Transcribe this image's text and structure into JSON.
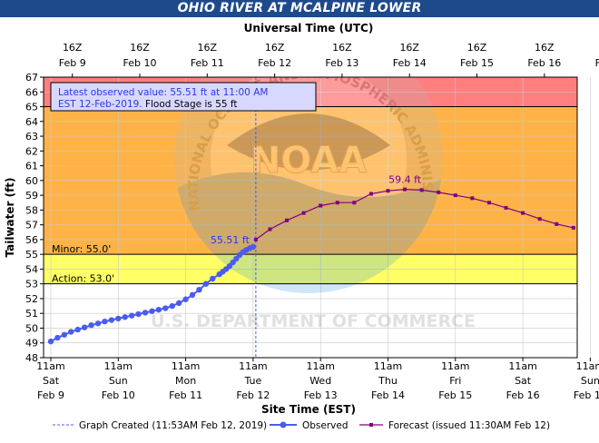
{
  "chart_data": {
    "type": "line",
    "title": "OHIO RIVER AT MCALPINE LOWER",
    "top_axis_title": "Universal Time (UTC)",
    "bottom_axis_title": "Site Time (EST)",
    "ylabel": "Tailwater (ft)",
    "ylim": [
      48,
      67
    ],
    "yticks": [
      "48",
      "49",
      "50",
      "51",
      "52",
      "53",
      "54",
      "55",
      "56",
      "57",
      "58",
      "59",
      "60",
      "61",
      "62",
      "63",
      "64",
      "65",
      "66",
      "67"
    ],
    "top_ticks": [
      {
        "l1": "16Z",
        "l2": "Feb 9"
      },
      {
        "l1": "16Z",
        "l2": "Feb 10"
      },
      {
        "l1": "16Z",
        "l2": "Feb 11"
      },
      {
        "l1": "16Z",
        "l2": "Feb 12"
      },
      {
        "l1": "16Z",
        "l2": "Feb 13"
      },
      {
        "l1": "16Z",
        "l2": "Feb 14"
      },
      {
        "l1": "16Z",
        "l2": "Feb 15"
      },
      {
        "l1": "16Z",
        "l2": "Feb 16"
      },
      {
        "l1": "16Z",
        "l2": "Feb 17"
      }
    ],
    "bottom_ticks": [
      {
        "l1": "11am",
        "l2": "Sat",
        "l3": "Feb 9"
      },
      {
        "l1": "11am",
        "l2": "Sun",
        "l3": "Feb 10"
      },
      {
        "l1": "11am",
        "l2": "Mon",
        "l3": "Feb 11"
      },
      {
        "l1": "11am",
        "l2": "Tue",
        "l3": "Feb 12"
      },
      {
        "l1": "11am",
        "l2": "Wed",
        "l3": "Feb 13"
      },
      {
        "l1": "11am",
        "l2": "Thu",
        "l3": "Feb 14"
      },
      {
        "l1": "11am",
        "l2": "Fri",
        "l3": "Feb 15"
      },
      {
        "l1": "11am",
        "l2": "Sat",
        "l3": "Feb 16"
      },
      {
        "l1": "11am",
        "l2": "Sun",
        "l3": "Feb 17"
      }
    ],
    "xlim": [
      "Feb 9 11am EST",
      "Feb 17 11am EST"
    ],
    "bands": [
      {
        "from": 48,
        "to": 53,
        "color": "#ffffff"
      },
      {
        "from": 53,
        "to": 55,
        "color": "#ffff66"
      },
      {
        "from": 55,
        "to": 65,
        "color": "#ffb347"
      },
      {
        "from": 65,
        "to": 67,
        "color": "#ff7f7f"
      }
    ],
    "stage_labels": [
      {
        "label": "Minor:  55.0'",
        "value": 55
      },
      {
        "label": "Action:  53.0'",
        "value": 53
      }
    ],
    "flood_line": 65,
    "graph_created_day": 3.04,
    "series": [
      {
        "name": "Observed",
        "color": "#4a5cf0",
        "x_days": [
          0,
          0.1,
          0.2,
          0.3,
          0.4,
          0.5,
          0.6,
          0.7,
          0.8,
          0.9,
          1.0,
          1.1,
          1.2,
          1.3,
          1.4,
          1.5,
          1.6,
          1.7,
          1.8,
          1.9,
          2.0,
          2.1,
          2.2,
          2.3,
          2.4,
          2.5,
          2.55,
          2.6,
          2.65,
          2.7,
          2.75,
          2.8,
          2.85,
          2.9,
          2.95,
          3.0
        ],
        "values": [
          49.1,
          49.35,
          49.55,
          49.75,
          49.9,
          50.05,
          50.2,
          50.32,
          50.45,
          50.55,
          50.65,
          50.75,
          50.85,
          50.95,
          51.05,
          51.15,
          51.25,
          51.35,
          51.5,
          51.7,
          51.95,
          52.25,
          52.6,
          53.0,
          53.35,
          53.65,
          53.82,
          54.0,
          54.2,
          54.45,
          54.7,
          54.95,
          55.15,
          55.3,
          55.42,
          55.51
        ]
      },
      {
        "name": "Forecast (issued 11:30AM Feb 12)",
        "color": "#800080",
        "x_days": [
          3.04,
          3.25,
          3.5,
          3.75,
          4.0,
          4.25,
          4.5,
          4.75,
          5.0,
          5.25,
          5.5,
          5.75,
          6.0,
          6.25,
          6.5,
          6.75,
          7.0,
          7.25,
          7.5,
          7.75
        ],
        "values": [
          56.0,
          56.7,
          57.3,
          57.8,
          58.3,
          58.5,
          58.5,
          59.1,
          59.3,
          59.4,
          59.35,
          59.2,
          59.0,
          58.8,
          58.5,
          58.15,
          57.8,
          57.4,
          57.05,
          56.8
        ]
      }
    ],
    "peak": {
      "label": "59.4 ft",
      "x_day": 5.25,
      "value": 59.4
    },
    "obs_label": {
      "label": "55.51 ft",
      "x_day": 3.0,
      "value": 55.51
    },
    "info_box": {
      "line1": "Latest observed value: 55.51 ft at 11:00 AM",
      "line2_a": "EST 12-Feb-2019.",
      "line2_b": " Flood Stage is 55 ft"
    },
    "legend": [
      {
        "label": "Graph Created (11:53AM Feb 12, 2019)",
        "style": "dashed",
        "color": "#4a5cf0"
      },
      {
        "label": "Observed",
        "style": "dot-line",
        "color": "#4a5cf0"
      },
      {
        "label": "Forecast (issued 11:30AM Feb 12)",
        "style": "square-line",
        "color": "#800080"
      }
    ],
    "watermark": {
      "center_text": "NOAA",
      "ring_text": "NATIONAL OCEANIC AND ATMOSPHERIC ADMINISTRATION",
      "bottom_text": "U.S. DEPARTMENT OF COMMERCE"
    }
  }
}
